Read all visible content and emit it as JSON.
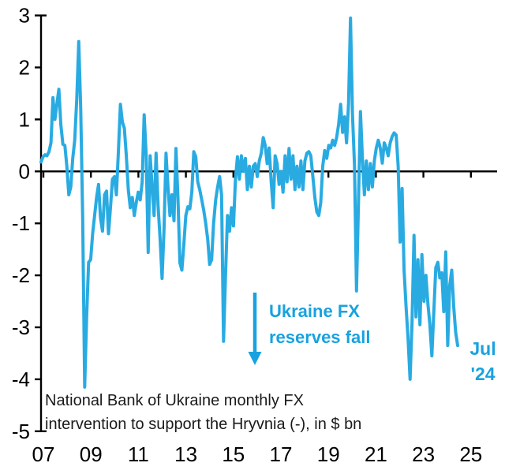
{
  "colors": {
    "line": "#29ABE2",
    "annotation": "#18A2DF",
    "axis": "#000000",
    "note_text": "#1A1A1A",
    "background": "#FFFFFF"
  },
  "source_note": {
    "line1": "National Bank of Ukraine monthly FX",
    "line2": "intervention to support the Hryvnia (-), in $ bn"
  },
  "annotations": {
    "reserves_label_line1": "Ukraine FX",
    "reserves_label_line2": "reserves fall",
    "end_label_line1": "Jul",
    "end_label_line2": "'24"
  },
  "chart_data": {
    "type": "line",
    "title": "National Bank of Ukraine monthly FX intervention to support the Hryvnia (-), in $ bn",
    "unit": "USD bn",
    "frequency": "monthly",
    "x_start": "2007-01",
    "x_end": "2024-07",
    "ylim": [
      -5,
      3
    ],
    "grid": false,
    "legend": "none",
    "y_ticks": [
      3,
      2,
      1,
      0,
      -1,
      -2,
      -3,
      -4,
      -5
    ],
    "x_tick_labels": [
      "07",
      "09",
      "11",
      "13",
      "15",
      "17",
      "19",
      "21",
      "23",
      "25"
    ],
    "annotation_arrow": {
      "meaning": "Ukraine FX reserves fall",
      "direction": "down"
    },
    "series": [
      {
        "name": "NBU monthly FX intervention ($ bn)",
        "values": [
          0.18,
          0.28,
          0.32,
          0.3,
          0.38,
          0.55,
          1.42,
          1.0,
          1.3,
          1.58,
          0.9,
          0.52,
          0.5,
          0.1,
          -0.45,
          -0.3,
          0.25,
          0.6,
          1.4,
          2.5,
          1.2,
          -0.9,
          -4.15,
          -2.8,
          -1.75,
          -1.7,
          -1.2,
          -0.85,
          -0.5,
          -0.25,
          -0.9,
          -1.15,
          -0.45,
          -0.38,
          -1.2,
          -0.7,
          -0.15,
          -0.1,
          -0.45,
          0.4,
          1.29,
          0.95,
          0.83,
          0.3,
          -0.35,
          -0.7,
          -0.5,
          -0.85,
          -0.6,
          -0.4,
          -0.55,
          -0.2,
          1.09,
          0.3,
          -1.56,
          0.3,
          -0.3,
          -0.85,
          0.35,
          -0.65,
          -1.3,
          -2.06,
          -1.1,
          0.35,
          -0.3,
          -0.85,
          -0.45,
          -0.95,
          0.44,
          -0.5,
          -1.76,
          -1.9,
          -1.4,
          -0.85,
          -0.68,
          -0.72,
          -0.4,
          0.38,
          0.28,
          -0.2,
          -0.35,
          -0.55,
          -0.75,
          -1.0,
          -1.3,
          -1.79,
          -1.7,
          -1.0,
          -0.55,
          -0.3,
          -0.1,
          -0.45,
          -3.27,
          -2.0,
          -0.85,
          -1.15,
          -0.7,
          -1.05,
          -0.15,
          0.28,
          -0.15,
          0.3,
          0.0,
          0.25,
          -0.35,
          0.1,
          -0.3,
          0.1,
          0.15,
          -0.1,
          0.2,
          0.35,
          0.65,
          0.5,
          0.15,
          0.45,
          -0.2,
          -0.7,
          0.3,
          0.15,
          -0.25,
          0.0,
          -0.4,
          0.3,
          -0.2,
          0.44,
          -0.15,
          0.3,
          -0.35,
          0.1,
          -0.3,
          0.2,
          -0.35,
          0.2,
          0.35,
          0.38,
          0.3,
          -0.1,
          -0.5,
          -0.78,
          -0.85,
          -0.6,
          0.1,
          0.4,
          0.25,
          0.5,
          0.45,
          0.6,
          0.5,
          0.65,
          0.9,
          1.29,
          0.75,
          1.05,
          0.55,
          1.3,
          2.95,
          1.1,
          0.1,
          -2.3,
          -0.6,
          1.15,
          0.25,
          -0.45,
          0.2,
          -0.35,
          0.15,
          -0.3,
          0.2,
          0.45,
          0.6,
          0.45,
          0.16,
          0.55,
          0.45,
          0.3,
          0.55,
          0.67,
          0.74,
          0.7,
          0.1,
          -1.36,
          -0.33,
          -1.9,
          -2.6,
          -3.2,
          -4.0,
          -2.9,
          -1.23,
          -2.8,
          -1.7,
          -2.95,
          -1.6,
          -2.5,
          -2.0,
          -2.55,
          -2.95,
          -3.55,
          -2.7,
          -1.85,
          -1.75,
          -2.05,
          -1.95,
          -2.7,
          -1.55,
          -3.35,
          -2.2,
          -1.9,
          -2.6,
          -3.1,
          -3.35
        ]
      }
    ]
  }
}
